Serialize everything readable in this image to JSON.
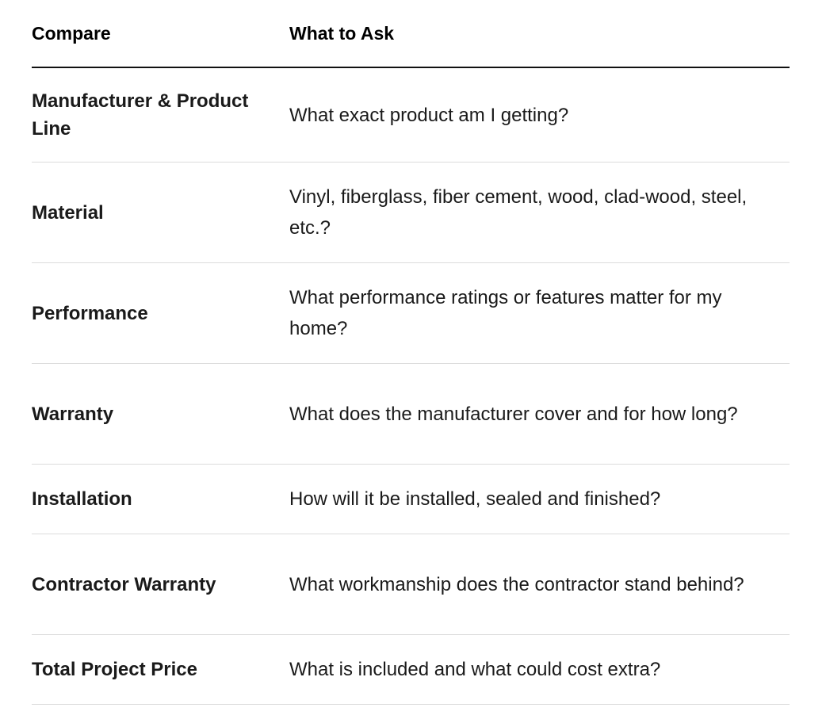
{
  "table": {
    "header": [
      "Compare",
      "What to Ask"
    ],
    "rows": [
      [
        "Manufacturer & Product Line",
        "What exact product am I getting?"
      ],
      [
        "Material",
        "Vinyl, fiberglass, fiber cement, wood, clad-wood, steel, etc.?"
      ],
      [
        "Performance",
        "What performance ratings or features matter for my home?"
      ],
      [
        "Warranty",
        "What does the manufacturer cover and for how long?"
      ],
      [
        "Installation",
        "How will it be installed, sealed and finished?"
      ],
      [
        "Contractor Warranty",
        "What workmanship does the contractor stand behind?"
      ],
      [
        "Total Project Price",
        "What is included and what could cost extra?"
      ]
    ]
  }
}
